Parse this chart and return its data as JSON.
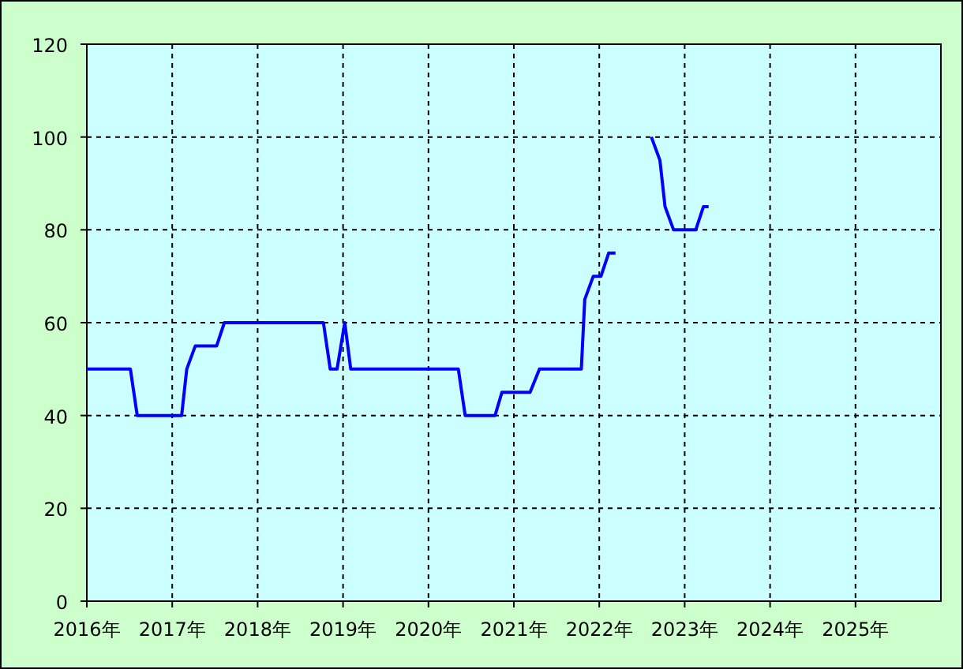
{
  "chart_data": {
    "type": "line",
    "series": [
      {
        "color": "#0000ff",
        "x": [
          2016.0,
          2016.51,
          2016.59,
          2017.11,
          2017.17,
          2017.27,
          2017.52,
          2017.61,
          2018.77,
          2018.85,
          2018.93,
          2019.02,
          2019.09,
          2020.35,
          2020.43,
          2020.78,
          2020.86,
          2021.19,
          2021.3,
          2021.79,
          2021.83,
          2021.93,
          2022.02,
          2022.11,
          2022.19
        ],
        "values": [
          50,
          50,
          40,
          40,
          50,
          55,
          55,
          60,
          60,
          50,
          50,
          60,
          50,
          50,
          40,
          40,
          45,
          45,
          50,
          50,
          65,
          70,
          70,
          75,
          75
        ]
      },
      {
        "color": "#0000ff",
        "x": [
          2022.61,
          2022.71,
          2022.77,
          2022.87,
          2023.13,
          2023.22,
          2023.28
        ],
        "values": [
          100,
          95,
          85,
          80,
          80,
          85,
          85
        ]
      }
    ],
    "xlim": [
      2016,
      2026
    ],
    "xticks": [
      {
        "value": 2016,
        "label": "2016年"
      },
      {
        "value": 2017,
        "label": "2017年"
      },
      {
        "value": 2018,
        "label": "2018年"
      },
      {
        "value": 2019,
        "label": "2019年"
      },
      {
        "value": 2020,
        "label": "2020年"
      },
      {
        "value": 2021,
        "label": "2021年"
      },
      {
        "value": 2022,
        "label": "2022年"
      },
      {
        "value": 2023,
        "label": "2023年"
      },
      {
        "value": 2024,
        "label": "2024年"
      },
      {
        "value": 2025,
        "label": "2025年"
      }
    ],
    "ylim": [
      0,
      120
    ],
    "yticks": [
      0,
      20,
      40,
      60,
      80,
      100,
      120
    ],
    "grid": true,
    "marker": "none",
    "line_style": "solid"
  }
}
